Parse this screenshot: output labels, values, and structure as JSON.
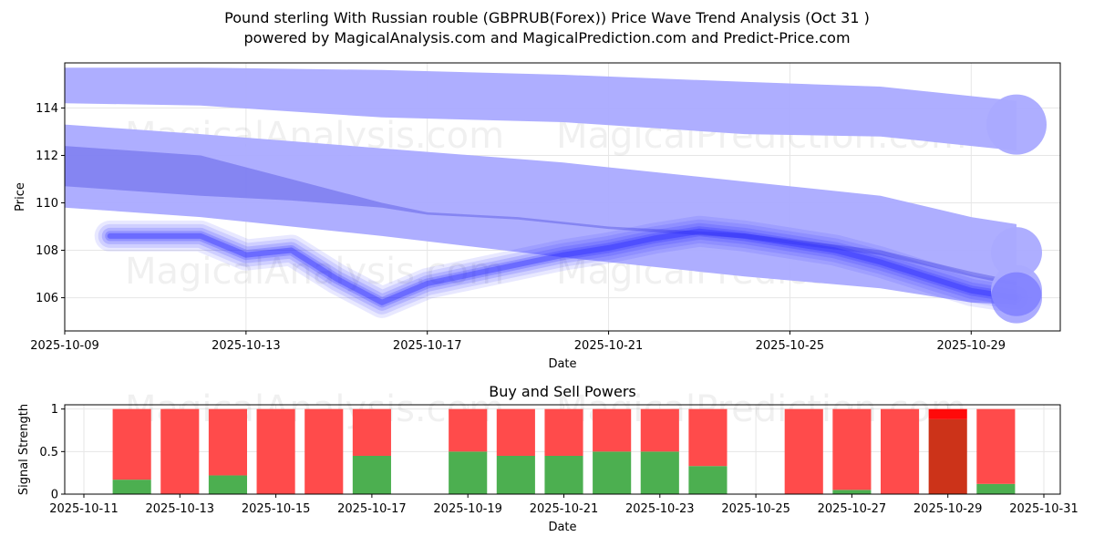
{
  "title_line1": "Pound sterling With Russian rouble (GBPRUB(Forex)) Price Wave Trend Analysis (Oct 31 )",
  "title_line2": "powered by MagicalAnalysis.com and MagicalPrediction.com and Predict-Price.com",
  "watermarks": [
    "MagicalAnalysis.com",
    "MagicalPrediction.com"
  ],
  "chart_data": [
    {
      "type": "line",
      "title": "",
      "xlabel": "Date",
      "ylabel": "Price",
      "ylim": [
        104.6,
        115.9
      ],
      "xlim": [
        "2025-10-09",
        "2025-10-30"
      ],
      "x_ticks": [
        "2025-10-09",
        "2025-10-13",
        "2025-10-17",
        "2025-10-21",
        "2025-10-25",
        "2025-10-29"
      ],
      "y_ticks": [
        106,
        108,
        110,
        112,
        114
      ],
      "grid": true,
      "bands": [
        {
          "name": "upper-band",
          "x": [
            "2025-10-09",
            "2025-10-12",
            "2025-10-16",
            "2025-10-20",
            "2025-10-24",
            "2025-10-27",
            "2025-10-29",
            "2025-10-30"
          ],
          "upper": [
            115.7,
            115.7,
            115.6,
            115.4,
            115.1,
            114.9,
            114.5,
            114.3
          ],
          "lower": [
            114.2,
            114.1,
            113.6,
            113.4,
            112.9,
            112.8,
            112.4,
            112.2
          ],
          "color": "#aaaaff"
        },
        {
          "name": "middle-band",
          "x": [
            "2025-10-09",
            "2025-10-12",
            "2025-10-16",
            "2025-10-20",
            "2025-10-24",
            "2025-10-27",
            "2025-10-29",
            "2025-10-30"
          ],
          "upper": [
            113.3,
            112.9,
            112.3,
            111.7,
            110.9,
            110.3,
            109.4,
            109.1
          ],
          "lower": [
            109.8,
            109.4,
            108.6,
            107.7,
            106.9,
            106.4,
            105.8,
            105.7
          ],
          "color": "#aaaaff"
        },
        {
          "name": "dark-band",
          "x": [
            "2025-10-09",
            "2025-10-12",
            "2025-10-14",
            "2025-10-16",
            "2025-10-17",
            "2025-10-19",
            "2025-10-21",
            "2025-10-24",
            "2025-10-27",
            "2025-10-29",
            "2025-10-30"
          ],
          "upper": [
            112.4,
            112.0,
            111.0,
            110.0,
            109.6,
            109.4,
            109.0,
            108.7,
            108.0,
            107.1,
            106.7
          ],
          "lower": [
            110.7,
            110.3,
            110.1,
            109.8,
            109.5,
            109.3,
            108.9,
            108.5,
            107.8,
            106.9,
            106.5
          ],
          "color": "#7777ee"
        }
      ],
      "series": [
        {
          "name": "price-wave",
          "x": [
            "2025-10-10",
            "2025-10-12",
            "2025-10-13",
            "2025-10-14",
            "2025-10-15",
            "2025-10-16",
            "2025-10-17",
            "2025-10-18",
            "2025-10-19",
            "2025-10-20",
            "2025-10-21",
            "2025-10-22",
            "2025-10-23",
            "2025-10-24",
            "2025-10-25",
            "2025-10-26",
            "2025-10-27",
            "2025-10-28",
            "2025-10-29",
            "2025-10-30"
          ],
          "values": [
            108.6,
            108.6,
            107.8,
            108.0,
            106.8,
            105.8,
            106.6,
            107.0,
            107.4,
            107.8,
            108.1,
            108.5,
            108.8,
            108.6,
            108.3,
            108.0,
            107.5,
            106.9,
            106.3,
            106.0
          ],
          "color": "#2222ff"
        }
      ],
      "end_markers": [
        113.3,
        107.9,
        106.3,
        106.0
      ]
    },
    {
      "type": "bar",
      "title": "Buy and Sell Powers",
      "xlabel": "Date",
      "ylabel": "Signal Strength",
      "ylim": [
        0,
        1.05
      ],
      "xlim": [
        "2025-10-11",
        "2025-10-31"
      ],
      "x_ticks": [
        "2025-10-11",
        "2025-10-13",
        "2025-10-15",
        "2025-10-17",
        "2025-10-19",
        "2025-10-21",
        "2025-10-23",
        "2025-10-25",
        "2025-10-27",
        "2025-10-29",
        "2025-10-31"
      ],
      "y_ticks": [
        0.0,
        0.5,
        1.0
      ],
      "grid": true,
      "categories": [
        "2025-10-12",
        "2025-10-13",
        "2025-10-14",
        "2025-10-15",
        "2025-10-16",
        "2025-10-17",
        "2025-10-19",
        "2025-10-20",
        "2025-10-21",
        "2025-10-22",
        "2025-10-23",
        "2025-10-24",
        "2025-10-26",
        "2025-10-27",
        "2025-10-28",
        "2025-10-29",
        "2025-10-30"
      ],
      "series": [
        {
          "name": "Buy",
          "values": [
            0.17,
            0.0,
            0.22,
            0.0,
            0.0,
            0.45,
            0.5,
            0.45,
            0.45,
            0.5,
            0.5,
            0.33,
            0.0,
            0.05,
            0.0,
            0.88,
            0.12
          ],
          "color": "#4caf50"
        },
        {
          "name": "Sell",
          "values": [
            0.83,
            1.0,
            0.78,
            1.0,
            1.0,
            0.55,
            0.5,
            0.55,
            0.55,
            0.5,
            0.5,
            0.67,
            1.0,
            0.95,
            1.0,
            0.12,
            0.88
          ],
          "color": "#ff4b4b"
        }
      ],
      "highlight": {
        "date": "2025-10-29",
        "buy_color": "#cc3319",
        "sell_color": "#ff0a0a"
      }
    }
  ]
}
